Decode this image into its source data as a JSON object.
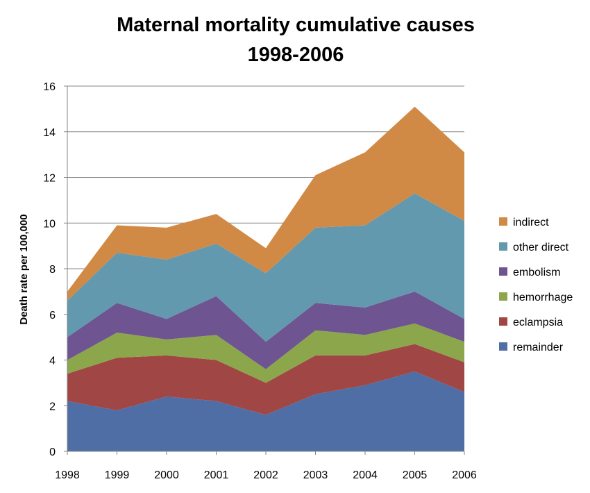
{
  "chart_data": {
    "type": "area",
    "stacked": true,
    "title": "Maternal mortality cumulative causes",
    "subtitle": "1998-2006",
    "xlabel": "",
    "ylabel": "Death rate per 100,000",
    "x": [
      "1998",
      "1999",
      "2000",
      "2001",
      "2002",
      "2003",
      "2004",
      "2005",
      "2006"
    ],
    "ylim": [
      0,
      16
    ],
    "yticks": [
      "0",
      "2",
      "4",
      "6",
      "8",
      "10",
      "12",
      "14",
      "16"
    ],
    "grid": true,
    "legend_position": "right",
    "series": [
      {
        "name": "remainder",
        "color": "#4F6EA5",
        "values": [
          2.2,
          1.8,
          2.4,
          2.2,
          1.6,
          2.5,
          2.9,
          3.5,
          2.6
        ]
      },
      {
        "name": "eclampsia",
        "color": "#A04644",
        "values": [
          1.2,
          2.3,
          1.8,
          1.8,
          1.4,
          1.7,
          1.3,
          1.2,
          1.3
        ]
      },
      {
        "name": "hemorrhage",
        "color": "#8CA74B",
        "values": [
          0.6,
          1.1,
          0.7,
          1.1,
          0.6,
          1.1,
          0.9,
          0.9,
          0.9
        ]
      },
      {
        "name": "embolism",
        "color": "#6E5490",
        "values": [
          1.0,
          1.3,
          0.9,
          1.7,
          1.2,
          1.2,
          1.2,
          1.4,
          1.0
        ]
      },
      {
        "name": "other direct",
        "color": "#6399AF",
        "values": [
          1.6,
          2.2,
          2.6,
          2.3,
          3.0,
          3.3,
          3.6,
          4.3,
          4.3
        ]
      },
      {
        "name": "indirect",
        "color": "#D08A45",
        "values": [
          0.4,
          1.2,
          1.4,
          1.3,
          1.1,
          2.3,
          3.2,
          3.8,
          3.0
        ]
      }
    ]
  }
}
